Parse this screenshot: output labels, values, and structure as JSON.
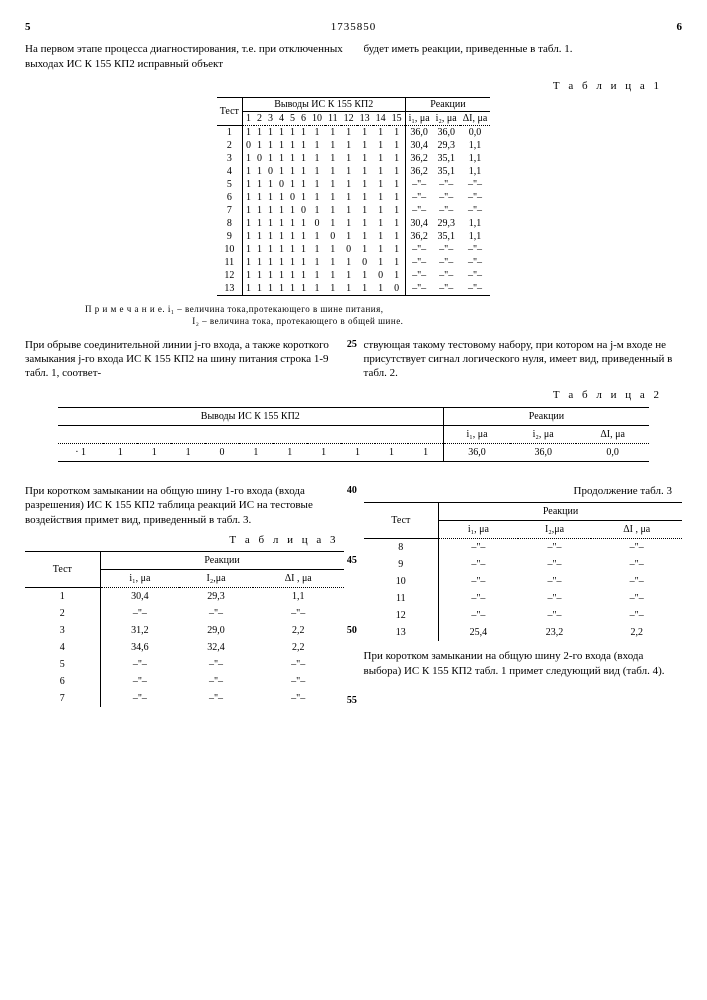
{
  "header": {
    "left_col": "5",
    "patent": "1735850",
    "right_col": "6"
  },
  "intro_left": "На первом этапе процесса диагнос­тирования, т.е. при отключенных вы­ходах ИС К 155 КП2 исправный объект",
  "intro_right": "будет иметь реакции, приведенные в табл. 1.",
  "table1_label": "Т а б л и ц а 1",
  "table1": {
    "group_left": "Выводы ИС К 155 КП2",
    "group_right": "Реакции",
    "test_col": "Тест",
    "pins": [
      "1",
      "2",
      "3",
      "4",
      "5",
      "6",
      "10",
      "11",
      "12",
      "13",
      "14",
      "15"
    ],
    "r_cols": [
      "i₁, μa",
      "i₂, μa",
      "ΔI, μa"
    ],
    "rows": [
      {
        "n": "1",
        "p": [
          "1",
          "1",
          "1",
          "1",
          "1",
          "1",
          "1",
          "1",
          "1",
          "1",
          "1",
          "1"
        ],
        "r": [
          "36,0",
          "36,0",
          "0,0"
        ]
      },
      {
        "n": "2",
        "p": [
          "0",
          "1",
          "1",
          "1",
          "1",
          "1",
          "1",
          "1",
          "1",
          "1",
          "1",
          "1"
        ],
        "r": [
          "30,4",
          "29,3",
          "1,1"
        ]
      },
      {
        "n": "3",
        "p": [
          "1",
          "0",
          "1",
          "1",
          "1",
          "1",
          "1",
          "1",
          "1",
          "1",
          "1",
          "1"
        ],
        "r": [
          "36,2",
          "35,1",
          "1,1"
        ]
      },
      {
        "n": "4",
        "p": [
          "1",
          "1",
          "0",
          "1",
          "1",
          "1",
          "1",
          "1",
          "1",
          "1",
          "1",
          "1"
        ],
        "r": [
          "36,2",
          "35,1",
          "1,1"
        ]
      },
      {
        "n": "5",
        "p": [
          "1",
          "1",
          "1",
          "0",
          "1",
          "1",
          "1",
          "1",
          "1",
          "1",
          "1",
          "1"
        ],
        "r": [
          "–\"–",
          "–\"–",
          "–\"–"
        ]
      },
      {
        "n": "6",
        "p": [
          "1",
          "1",
          "1",
          "1",
          "0",
          "1",
          "1",
          "1",
          "1",
          "1",
          "1",
          "1"
        ],
        "r": [
          "–\"–",
          "–\"–",
          "–\"–"
        ]
      },
      {
        "n": "7",
        "p": [
          "1",
          "1",
          "1",
          "1",
          "1",
          "0",
          "1",
          "1",
          "1",
          "1",
          "1",
          "1"
        ],
        "r": [
          "–\"–",
          "–\"–",
          "–\"–"
        ]
      },
      {
        "n": "8",
        "p": [
          "1",
          "1",
          "1",
          "1",
          "1",
          "1",
          "0",
          "1",
          "1",
          "1",
          "1",
          "1"
        ],
        "r": [
          "30,4",
          "29,3",
          "1,1"
        ]
      },
      {
        "n": "9",
        "p": [
          "1",
          "1",
          "1",
          "1",
          "1",
          "1",
          "1",
          "0",
          "1",
          "1",
          "1",
          "1"
        ],
        "r": [
          "36,2",
          "35,1",
          "1,1"
        ]
      },
      {
        "n": "10",
        "p": [
          "1",
          "1",
          "1",
          "1",
          "1",
          "1",
          "1",
          "1",
          "0",
          "1",
          "1",
          "1"
        ],
        "r": [
          "–\"–",
          "–\"–",
          "–\"–"
        ]
      },
      {
        "n": "11",
        "p": [
          "1",
          "1",
          "1",
          "1",
          "1",
          "1",
          "1",
          "1",
          "1",
          "0",
          "1",
          "1"
        ],
        "r": [
          "–\"–",
          "–\"–",
          "–\"–"
        ]
      },
      {
        "n": "12",
        "p": [
          "1",
          "1",
          "1",
          "1",
          "1",
          "1",
          "1",
          "1",
          "1",
          "1",
          "0",
          "1"
        ],
        "r": [
          "–\"–",
          "–\"–",
          "–\"–"
        ]
      },
      {
        "n": "13",
        "p": [
          "1",
          "1",
          "1",
          "1",
          "1",
          "1",
          "1",
          "1",
          "1",
          "1",
          "1",
          "0"
        ],
        "r": [
          "–\"–",
          "–\"–",
          "–\"–"
        ]
      }
    ]
  },
  "footnote": "П р и м е ч а н и е. i₁ – величина тока,протекающего в шине питания,\n                                       I₂ – величина тока, протекающего в общей шине.",
  "para2_left": "При обрыве соединительной линии j-го входа, а также короткого замыка­ния j-го входа ИС К 155 КП2 на шину питания строка 1-9 табл. 1, соответ-",
  "para2_right": "ствующая такому тестовому набору, при котором на j-м входе не присутствует сигнал логического нуля, имеет вид, приведенный в табл. 2.",
  "line25": "25",
  "table2_label": "Т а б л и ц а 2",
  "table2": {
    "group_left": "Выводы ИС К 155 КП2",
    "group_right": "Реакции",
    "r_cols": [
      "i₁, μa",
      "i₂, μa",
      "ΔI, μa"
    ],
    "row": {
      "p": [
        "· 1",
        "1",
        "1",
        "1",
        "0",
        "1",
        "1",
        "1",
        "1",
        "1",
        "1"
      ],
      "r": [
        "36,0",
        "36,0",
        "0,0"
      ]
    }
  },
  "para3": "При коротком замыкании на общую шину 1-го входа (входа разрешения) ИС К 155 КП2 таблица реакций ИС на тестовые воздействия примет вид, при­веденный в табл. 3.",
  "table3_label": "Т а б л и ц а 3",
  "table3_cont_label": "Продолжение табл. 3",
  "table3": {
    "test_col": "Тест",
    "group": "Реакции",
    "r_cols": [
      "i₁, μa",
      "I₂,μa",
      "ΔI , μa"
    ],
    "rows_left": [
      {
        "n": "1",
        "r": [
          "30,4",
          "29,3",
          "1,1"
        ]
      },
      {
        "n": "2",
        "r": [
          "–\"–",
          "–\"–",
          "–\"–"
        ]
      },
      {
        "n": "3",
        "r": [
          "31,2",
          "29,0",
          "2,2"
        ]
      },
      {
        "n": "4",
        "r": [
          "34,6",
          "32,4",
          "2,2"
        ]
      },
      {
        "n": "5",
        "r": [
          "–\"–",
          "–\"–",
          "–\"–"
        ]
      },
      {
        "n": "6",
        "r": [
          "–\"–",
          "–\"–",
          "–\"–"
        ]
      },
      {
        "n": "7",
        "r": [
          "–\"–",
          "–\"–",
          "–\"–"
        ]
      }
    ],
    "rows_right": [
      {
        "n": "8",
        "r": [
          "–\"–",
          "–\"–",
          "–\"–"
        ]
      },
      {
        "n": "9",
        "r": [
          "–\"–",
          "–\"–",
          "–\"–"
        ]
      },
      {
        "n": "10",
        "r": [
          "–\"–",
          "–\"–",
          "–\"–"
        ]
      },
      {
        "n": "11",
        "r": [
          "–\"–",
          "–\"–",
          "–\"–"
        ]
      },
      {
        "n": "12",
        "r": [
          "–\"–",
          "–\"–",
          "–\"–"
        ]
      },
      {
        "n": "13",
        "r": [
          "25,4",
          "23,2",
          "2,2"
        ]
      }
    ]
  },
  "para4": "При коротком замыкании на общую шину 2-го входа (входа выбора) ИС К 155 КП2 табл. 1 примет следующий вид (табл. 4).",
  "line40": "40",
  "line45": "45",
  "line50": "50",
  "line55": "55"
}
